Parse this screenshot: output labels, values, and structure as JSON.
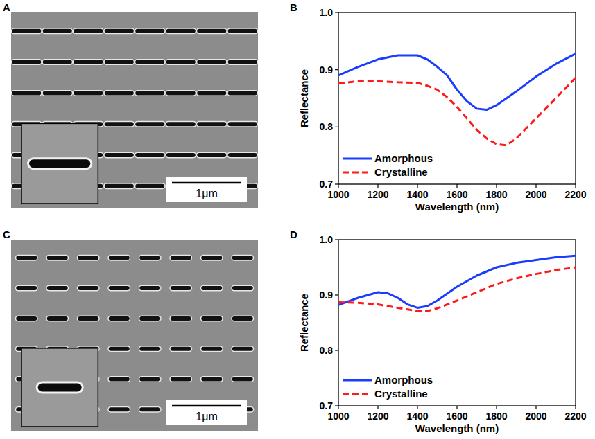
{
  "panel_labels": [
    "A",
    "B",
    "C",
    "D"
  ],
  "images": [
    {
      "scale_bar": "1μm"
    },
    {
      "scale_bar": "1μm"
    }
  ],
  "chart_data": [
    {
      "type": "line",
      "x_label": "Wavelength (nm)",
      "y_label": "Reflectance",
      "x": [
        1000,
        1100,
        1200,
        1300,
        1400,
        1450,
        1500,
        1550,
        1600,
        1650,
        1700,
        1750,
        1800,
        1850,
        1900,
        2000,
        2100,
        2200
      ],
      "xlim": [
        1000,
        2200
      ],
      "xticks": [
        1000,
        1200,
        1400,
        1600,
        1800,
        2000,
        2200
      ],
      "ylim": [
        0.7,
        1.0
      ],
      "yticks": [
        0.7,
        0.8,
        0.9,
        {
          "value": 1,
          "label": "1.0"
        }
      ],
      "legend": "lower left",
      "series": [
        {
          "name": "Amorphous",
          "color": "#1a3cff",
          "line_style": "solid",
          "values": [
            0.89,
            0.905,
            0.918,
            0.925,
            0.925,
            0.918,
            0.905,
            0.89,
            0.865,
            0.845,
            0.832,
            0.83,
            0.838,
            0.85,
            0.862,
            0.888,
            0.91,
            0.928
          ]
        },
        {
          "name": "Crystalline",
          "color": "#ff1a1a",
          "line_style": "dashed",
          "values": [
            0.876,
            0.88,
            0.88,
            0.878,
            0.877,
            0.872,
            0.865,
            0.852,
            0.835,
            0.815,
            0.795,
            0.78,
            0.77,
            0.768,
            0.78,
            0.815,
            0.85,
            0.886
          ]
        }
      ]
    },
    {
      "type": "line",
      "x_label": "Wavelength (nm)",
      "y_label": "Reflectance",
      "x": [
        1000,
        1100,
        1200,
        1250,
        1300,
        1350,
        1400,
        1450,
        1500,
        1600,
        1700,
        1800,
        1900,
        2000,
        2100,
        2200
      ],
      "xlim": [
        1000,
        2200
      ],
      "xticks": [
        1000,
        1200,
        1400,
        1600,
        1800,
        2000,
        2200
      ],
      "ylim": [
        0.7,
        1.0
      ],
      "yticks": [
        0.7,
        0.8,
        0.9,
        {
          "value": 1,
          "label": "1.0"
        }
      ],
      "legend": "lower left",
      "series": [
        {
          "name": "Amorphous",
          "color": "#1a3cff",
          "line_style": "solid",
          "values": [
            0.882,
            0.895,
            0.905,
            0.903,
            0.895,
            0.883,
            0.877,
            0.88,
            0.89,
            0.915,
            0.935,
            0.95,
            0.958,
            0.963,
            0.968,
            0.971
          ]
        },
        {
          "name": "Crystalline",
          "color": "#ff1a1a",
          "line_style": "dashed",
          "values": [
            0.887,
            0.886,
            0.883,
            0.88,
            0.877,
            0.874,
            0.871,
            0.871,
            0.876,
            0.89,
            0.905,
            0.92,
            0.93,
            0.938,
            0.945,
            0.95
          ]
        }
      ]
    }
  ]
}
